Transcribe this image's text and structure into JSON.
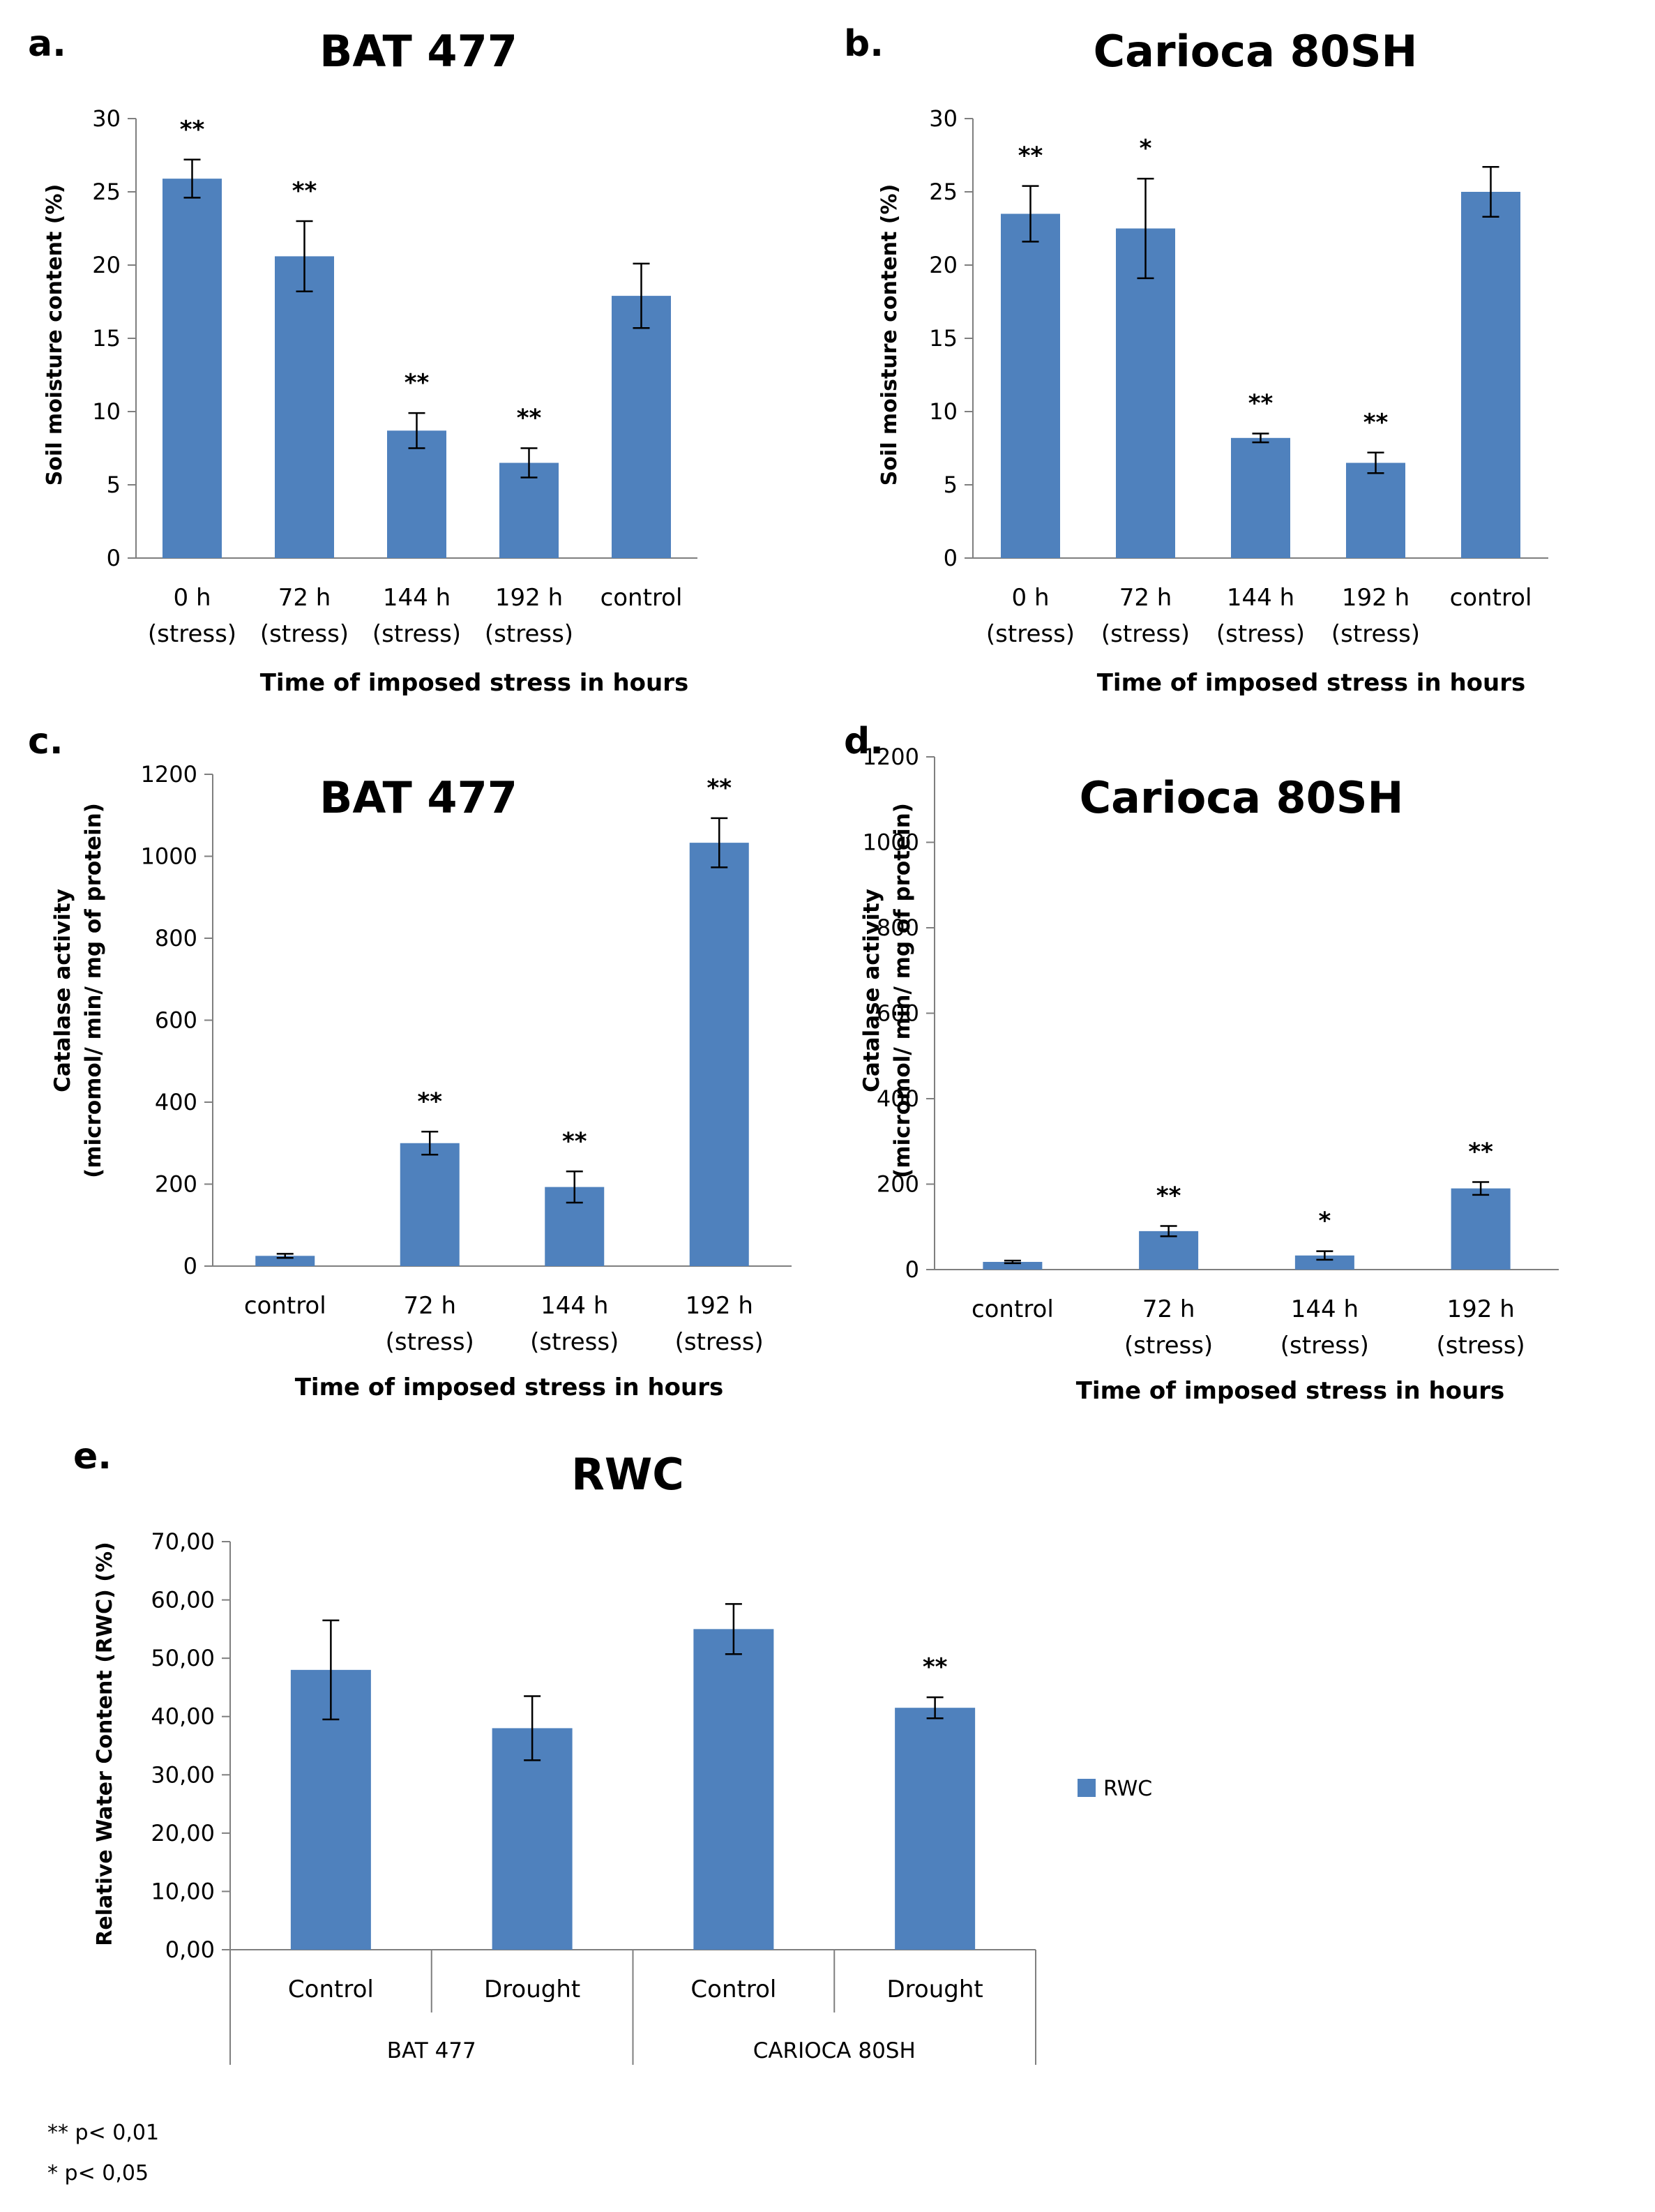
{
  "footnotes": [
    {
      "marker": "**",
      "text": "p< 0,01"
    },
    {
      "marker": "*",
      "text": "p< 0,05"
    }
  ],
  "chart_data": [
    {
      "panel_label": "a.",
      "type": "bar",
      "title": "BAT 477",
      "xlabel": "Time of imposed stress in hours",
      "ylabel": "Soil moisture content (%)",
      "ylim": [
        0,
        30
      ],
      "yticks": [
        "0",
        "5",
        "10",
        "15",
        "20",
        "25",
        "30"
      ],
      "categories": [
        [
          "0 h",
          "(stress)"
        ],
        [
          "72 h",
          "(stress)"
        ],
        [
          "144 h",
          "(stress)"
        ],
        [
          "192 h",
          "(stress)"
        ],
        [
          "control"
        ]
      ],
      "values": [
        25.9,
        20.6,
        8.7,
        6.5,
        17.9
      ],
      "errors": [
        1.3,
        2.4,
        1.2,
        1.0,
        2.2
      ],
      "significance": [
        "**",
        "**",
        "**",
        "**",
        ""
      ]
    },
    {
      "panel_label": "b.",
      "type": "bar",
      "title": "Carioca 80SH",
      "xlabel": "Time of imposed stress in hours",
      "ylabel": "Soil moisture content (%)",
      "ylim": [
        0,
        30
      ],
      "yticks": [
        "0",
        "5",
        "10",
        "15",
        "20",
        "25",
        "30"
      ],
      "categories": [
        [
          "0 h",
          "(stress)"
        ],
        [
          "72 h",
          "(stress)"
        ],
        [
          "144 h",
          "(stress)"
        ],
        [
          "192 h",
          "(stress)"
        ],
        [
          "control"
        ]
      ],
      "values": [
        23.5,
        22.5,
        8.2,
        6.5,
        25.0
      ],
      "errors": [
        1.9,
        3.4,
        0.3,
        0.7,
        1.7
      ],
      "significance": [
        "**",
        "*",
        "**",
        "**",
        ""
      ]
    },
    {
      "panel_label": "c.",
      "type": "bar",
      "title": "BAT 477",
      "xlabel": "Time of imposed stress in hours",
      "ylabel": [
        "Catalase activity",
        "(micromol/ min/ mg of protein)"
      ],
      "ylim": [
        0,
        1200
      ],
      "yticks": [
        "0",
        "200",
        "400",
        "600",
        "800",
        "1000",
        "1200"
      ],
      "categories": [
        [
          "control"
        ],
        [
          "72 h",
          "(stress)"
        ],
        [
          "144 h",
          "(stress)"
        ],
        [
          "192 h",
          "(stress)"
        ]
      ],
      "values": [
        25,
        300,
        193,
        1033
      ],
      "errors": [
        5,
        28,
        38,
        60
      ],
      "significance": [
        "",
        "**",
        "**",
        "**"
      ]
    },
    {
      "panel_label": "d.",
      "type": "bar",
      "title": "Carioca 80SH",
      "xlabel": "Time of imposed stress in hours",
      "ylabel": [
        "Catalase activity",
        "(micromol/ min/ mg of protein)"
      ],
      "ylim": [
        0,
        1200
      ],
      "yticks": [
        "0",
        "200",
        "400",
        "600",
        "800",
        "1000",
        "1200"
      ],
      "categories": [
        [
          "control"
        ],
        [
          "72 h",
          "(stress)"
        ],
        [
          "144 h",
          "(stress)"
        ],
        [
          "192 h",
          "(stress)"
        ]
      ],
      "values": [
        18,
        90,
        33,
        190
      ],
      "errors": [
        3,
        12,
        10,
        15
      ],
      "significance": [
        "",
        "**",
        "*",
        "**"
      ]
    },
    {
      "panel_label": "e.",
      "type": "bar",
      "title": "RWC",
      "xlabel": "",
      "ylabel": "Relative Water Content (RWC) (%)",
      "ylim": [
        0,
        70
      ],
      "yticks": [
        "0,00",
        "10,00",
        "20,00",
        "30,00",
        "40,00",
        "50,00",
        "60,00",
        "70,00"
      ],
      "categories": [
        [
          "Control"
        ],
        [
          "Drought"
        ],
        [
          "Control"
        ],
        [
          "Drought"
        ]
      ],
      "groups": [
        "BAT 477",
        "CARIOCA 80SH"
      ],
      "legend": [
        "RWC"
      ],
      "values": [
        48.0,
        38.0,
        55.0,
        41.5
      ],
      "errors": [
        8.5,
        5.5,
        4.3,
        1.8
      ],
      "significance": [
        "",
        "",
        "",
        "**"
      ]
    }
  ]
}
